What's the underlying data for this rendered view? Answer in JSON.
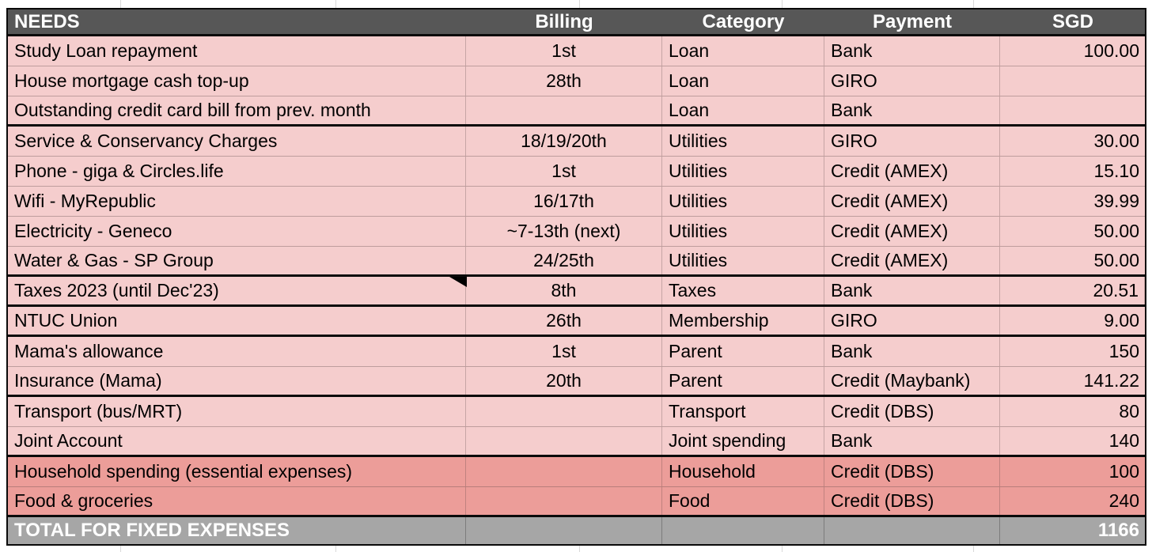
{
  "app": {
    "view": "expenses-spreadsheet"
  },
  "colors": {
    "header_bg": "#575757",
    "header_text": "#ffffff",
    "row_pink": "#F5CDCD",
    "row_salmon": "#EC9D99",
    "total_bg": "#A6A6A6",
    "total_text": "#ffffff",
    "border_black": "#0a0a0a"
  },
  "table": {
    "columns": [
      {
        "key": "needs",
        "label": "NEEDS"
      },
      {
        "key": "billing",
        "label": "Billing"
      },
      {
        "key": "category",
        "label": "Category"
      },
      {
        "key": "payment",
        "label": "Payment"
      },
      {
        "key": "sgd",
        "label": "SGD"
      }
    ],
    "rows": [
      {
        "needs": "Study Loan repayment",
        "billing": "1st",
        "category": "Loan",
        "payment": "Bank",
        "sgd": "100.00",
        "shade": "pink",
        "section_end": false,
        "comment_marker": false
      },
      {
        "needs": "House mortgage cash top-up",
        "billing": "28th",
        "category": "Loan",
        "payment": "GIRO",
        "sgd": "",
        "shade": "pink",
        "section_end": false,
        "comment_marker": false
      },
      {
        "needs": "Outstanding credit card bill from prev. month",
        "billing": "",
        "category": "Loan",
        "payment": "Bank",
        "sgd": "",
        "shade": "pink",
        "section_end": true,
        "comment_marker": false
      },
      {
        "needs": "Service & Conservancy Charges",
        "billing": "18/19/20th",
        "category": "Utilities",
        "payment": "GIRO",
        "sgd": "30.00",
        "shade": "pink",
        "section_end": false,
        "comment_marker": false
      },
      {
        "needs": "Phone - giga & Circles.life",
        "billing": "1st",
        "category": "Utilities",
        "payment": "Credit (AMEX)",
        "sgd": "15.10",
        "shade": "pink",
        "section_end": false,
        "comment_marker": false
      },
      {
        "needs": "Wifi - MyRepublic",
        "billing": "16/17th",
        "category": "Utilities",
        "payment": "Credit (AMEX)",
        "sgd": "39.99",
        "shade": "pink",
        "section_end": false,
        "comment_marker": false
      },
      {
        "needs": "Electricity - Geneco",
        "billing": "~7-13th (next)",
        "category": "Utilities",
        "payment": "Credit (AMEX)",
        "sgd": "50.00",
        "shade": "pink",
        "section_end": false,
        "comment_marker": false
      },
      {
        "needs": "Water & Gas - SP Group",
        "billing": "24/25th",
        "category": "Utilities",
        "payment": "Credit (AMEX)",
        "sgd": "50.00",
        "shade": "pink",
        "section_end": true,
        "comment_marker": false
      },
      {
        "needs": "Taxes 2023 (until Dec'23)",
        "billing": "8th",
        "category": "Taxes",
        "payment": "Bank",
        "sgd": "20.51",
        "shade": "pink",
        "section_end": true,
        "comment_marker": true
      },
      {
        "needs": "NTUC Union",
        "billing": "26th",
        "category": "Membership",
        "payment": "GIRO",
        "sgd": "9.00",
        "shade": "pink",
        "section_end": true,
        "comment_marker": false
      },
      {
        "needs": "Mama's allowance",
        "billing": "1st",
        "category": "Parent",
        "payment": "Bank",
        "sgd": "150",
        "shade": "pink",
        "section_end": false,
        "comment_marker": false
      },
      {
        "needs": "Insurance (Mama)",
        "billing": "20th",
        "category": "Parent",
        "payment": "Credit (Maybank)",
        "sgd": "141.22",
        "shade": "pink",
        "section_end": true,
        "comment_marker": false
      },
      {
        "needs": "Transport (bus/MRT)",
        "billing": "",
        "category": "Transport",
        "payment": "Credit (DBS)",
        "sgd": "80",
        "shade": "pink",
        "section_end": false,
        "comment_marker": false
      },
      {
        "needs": "Joint Account",
        "billing": "",
        "category": "Joint spending",
        "payment": "Bank",
        "sgd": "140",
        "shade": "pink",
        "section_end": true,
        "comment_marker": false
      },
      {
        "needs": "Household spending (essential expenses)",
        "billing": "",
        "category": "Household",
        "payment": "Credit (DBS)",
        "sgd": "100",
        "shade": "salmon",
        "section_end": false,
        "comment_marker": false
      },
      {
        "needs": "Food & groceries",
        "billing": "",
        "category": "Food",
        "payment": "Credit (DBS)",
        "sgd": "240",
        "shade": "salmon",
        "section_end": true,
        "comment_marker": false
      }
    ],
    "total_row": {
      "label": "TOTAL FOR FIXED EXPENSES",
      "billing": "",
      "category": "",
      "payment": "",
      "sgd": "1166"
    }
  }
}
